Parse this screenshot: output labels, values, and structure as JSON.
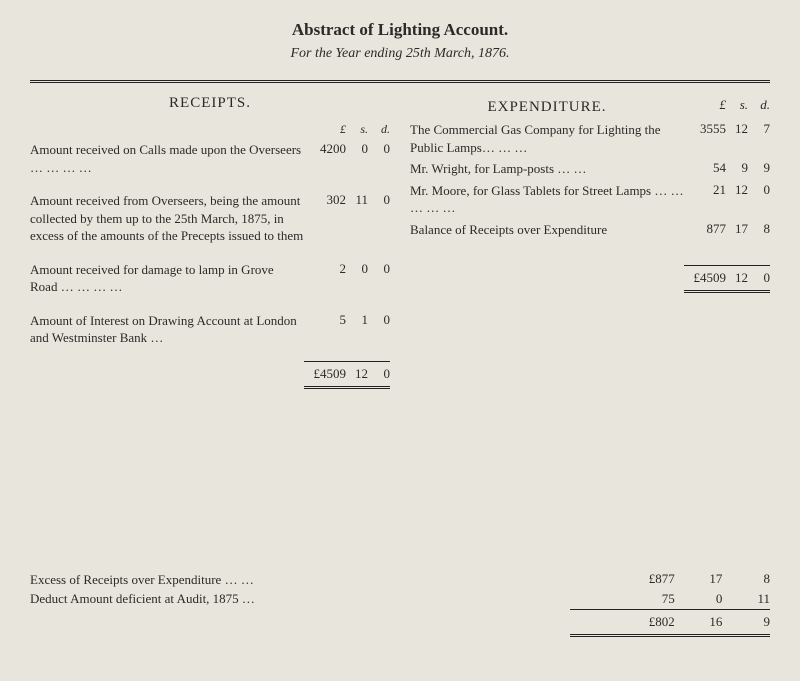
{
  "title_part1": "Abstract of ",
  "title_part2": "Lighting Account.",
  "subtitle_prefix": "For the Year ending ",
  "subtitle_date": "25th March, 1876.",
  "receipts": {
    "heading": "RECEIPTS.",
    "money_head": {
      "pounds": "£",
      "shil": "s.",
      "pence": "d."
    },
    "rows": [
      {
        "desc": "Amount received on Calls made upon the Overseers   …   …   …   …",
        "pounds": "4200",
        "shil": "0",
        "pence": "0"
      },
      {
        "desc": "Amount received from Overseers, being the amount collected by them up to the 25th March, 1875, in excess of the amounts of the Precepts issued to them",
        "pounds": "302",
        "shil": "11",
        "pence": "0"
      },
      {
        "desc": "Amount received for damage to lamp in Grove Road   …   …   …   …",
        "pounds": "2",
        "shil": "0",
        "pence": "0"
      },
      {
        "desc": "Amount of Interest on Drawing Account at London and Westminster Bank   …",
        "pounds": "5",
        "shil": "1",
        "pence": "0"
      }
    ],
    "total": {
      "pounds": "£4509",
      "shil": "12",
      "pence": "0"
    }
  },
  "expenditure": {
    "heading": "EXPENDITURE.",
    "money_head": {
      "pounds": "£",
      "shil": "s.",
      "pence": "d."
    },
    "rows": [
      {
        "desc": "The Commercial Gas Company for Lighting the Public Lamps…   …   …",
        "pounds": "3555",
        "shil": "12",
        "pence": "7"
      },
      {
        "desc": "Mr. Wright, for Lamp-posts   …   …",
        "pounds": "54",
        "shil": "9",
        "pence": "9"
      },
      {
        "desc": "Mr. Moore, for Glass Tablets for Street Lamps …   …   …   …   …",
        "pounds": "21",
        "shil": "12",
        "pence": "0"
      },
      {
        "desc": "Balance of Receipts over Expenditure",
        "pounds": "877",
        "shil": "17",
        "pence": "8"
      }
    ],
    "total": {
      "pounds": "£4509",
      "shil": "12",
      "pence": "0"
    }
  },
  "footer": {
    "line1_label": "Excess of Receipts over Expenditure …    …",
    "line2_label": "Deduct Amount deficient at Audit, 1875    …",
    "line1": {
      "pounds": "£877",
      "shil": "17",
      "pence": "8"
    },
    "line2": {
      "pounds": "75",
      "shil": "0",
      "pence": "11"
    },
    "total": {
      "pounds": "£802",
      "shil": "16",
      "pence": "9"
    }
  }
}
